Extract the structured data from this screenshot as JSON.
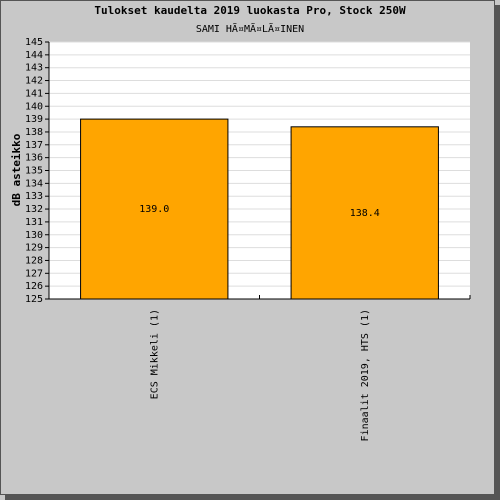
{
  "chart_data": {
    "type": "bar",
    "title": "Tulokset kaudelta 2019 luokasta Pro, Stock 250W",
    "subtitle": "SAMI HÃ¤MÃ¤LÃ¤INEN",
    "y_label": "dB asteikko",
    "categories": [
      "ECS Mikkeli (1)",
      "Finaalit 2019, HTS (1)"
    ],
    "values": [
      139.0,
      138.4
    ],
    "value_labels": [
      "139.0",
      "138.4"
    ],
    "color": "#ffa500",
    "ylim": [
      125,
      145
    ],
    "yticks": [
      125,
      126,
      127,
      128,
      129,
      130,
      131,
      132,
      133,
      134,
      135,
      136,
      137,
      138,
      139,
      140,
      141,
      142,
      143,
      144,
      145
    ],
    "grid": true
  }
}
